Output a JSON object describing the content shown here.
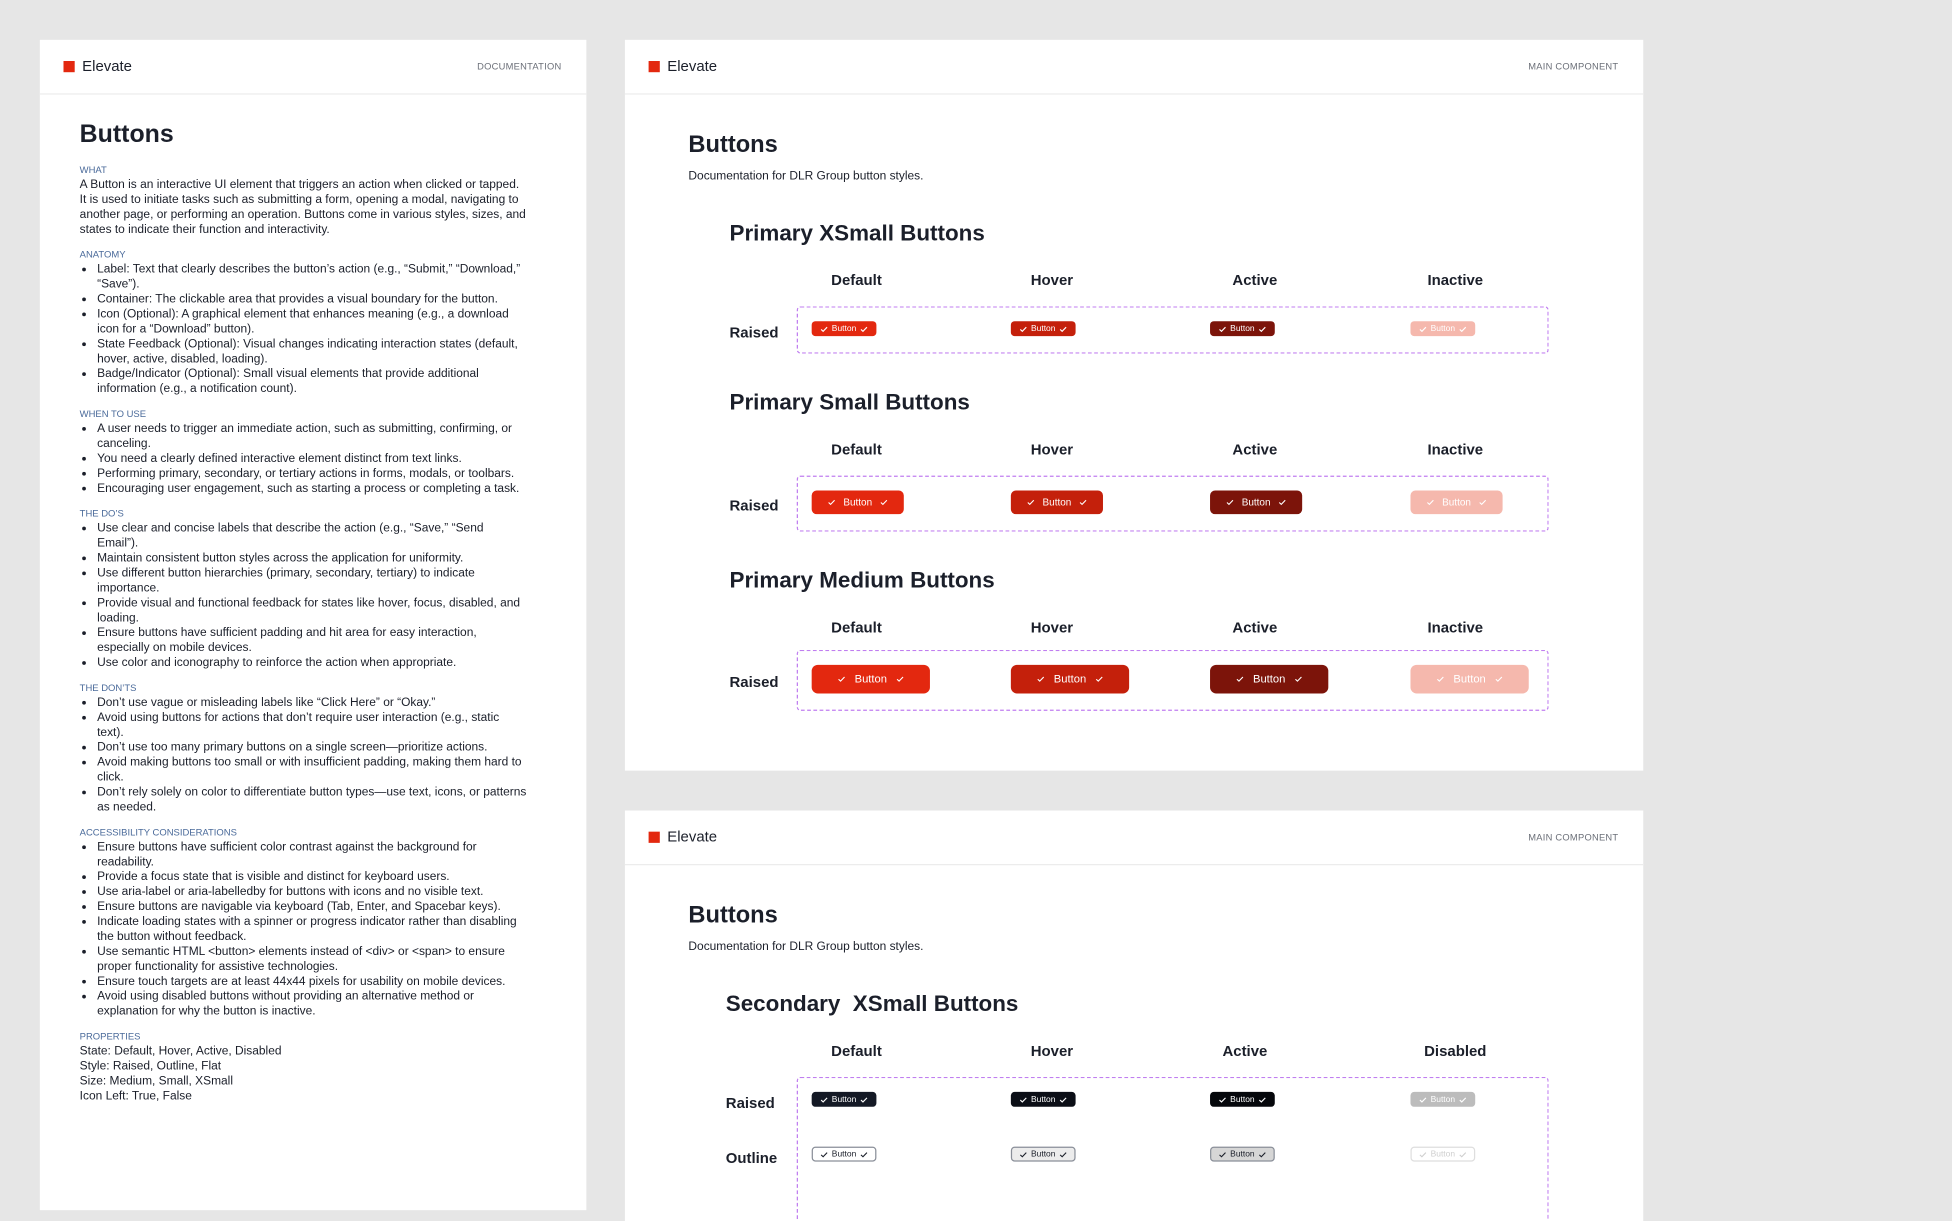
{
  "doc": {
    "brand": "Elevate",
    "tag": "DOCUMENTATION",
    "title": "Buttons",
    "sections": [
      {
        "heading": "WHAT",
        "paragraph": "A Button is an interactive UI element that triggers an action when clicked or tapped. It is used to initiate tasks such as submitting a form, opening a modal, navigating to another page, or performing an operation. Buttons come in various styles, sizes, and states to indicate their function and interactivity."
      },
      {
        "heading": "ANATOMY",
        "items": [
          "Label: Text that clearly describes the button’s action (e.g., “Submit,” “Download,” “Save”).",
          "Container: The clickable area that provides a visual boundary for the button.",
          "Icon (Optional): A graphical element that enhances meaning (e.g., a download icon for a “Download” button).",
          "State Feedback (Optional): Visual changes indicating interaction states (default, hover, active, disabled, loading).",
          "Badge/Indicator (Optional): Small visual elements that provide additional information (e.g., a notification count)."
        ]
      },
      {
        "heading": "WHEN TO USE",
        "items": [
          "A user needs to trigger an immediate action, such as submitting, confirming, or canceling.",
          "You need a clearly defined interactive element distinct from text links.",
          "Performing primary, secondary, or tertiary actions in forms, modals, or toolbars.",
          "Encouraging user engagement, such as starting a process or completing a task."
        ]
      },
      {
        "heading": "THE DO’S",
        "items": [
          "Use clear and concise labels that describe the action (e.g., “Save,” “Send Email”).",
          "Maintain consistent button styles across the application for uniformity.",
          "Use different button hierarchies (primary, secondary, tertiary) to indicate importance.",
          "Provide visual and functional feedback for states like hover, focus, disabled, and loading.",
          "Ensure buttons have sufficient padding and hit area for easy interaction, especially on mobile devices.",
          "Use color and iconography to reinforce the action when appropriate."
        ]
      },
      {
        "heading": "THE DON’TS",
        "items": [
          "Don’t use vague or misleading labels like “Click Here” or “Okay.”",
          "Avoid using buttons for actions that don’t require user interaction (e.g., static text).",
          "Don’t use too many primary buttons on a single screen—prioritize actions.",
          "Avoid making buttons too small or with insufficient padding, making them hard to click.",
          "Don’t rely solely on color to differentiate button types—use text, icons, or patterns as needed."
        ]
      },
      {
        "heading": "ACCESSIBILITY CONSIDERATIONS",
        "items": [
          "Ensure buttons have sufficient color contrast against the background for readability.",
          "Provide a focus state that is visible and distinct for keyboard users.",
          "Use aria-label or aria-labelledby for buttons with icons and no visible text.",
          "Ensure buttons are navigable via keyboard (Tab, Enter, and Spacebar keys).",
          "Indicate loading states with a spinner or progress indicator rather than disabling the button without feedback.",
          "Use semantic HTML <button> elements instead of <div> or <span> to ensure proper functionality for assistive technologies.",
          "Ensure touch targets are at least 44x44 pixels for usability on mobile devices.",
          "Avoid using disabled buttons without providing an alternative method or explanation for why the button is inactive."
        ]
      },
      {
        "heading": "PROPERTIES",
        "lines": [
          "State: Default, Hover, Active, Disabled",
          "Style: Raised, Outline, Flat",
          "Size: Medium, Small, XSmall",
          "Icon Left: True, False"
        ]
      }
    ]
  },
  "panels": [
    {
      "brand": "Elevate",
      "tag": "MAIN COMPONENT",
      "title": "Buttons",
      "subtitle": "Documentation for DLR Group button styles.",
      "groups": [
        {
          "title": "Primary XSmall Buttons",
          "columns": [
            "Default",
            "Hover",
            "Active",
            "Inactive"
          ],
          "rows": [
            {
              "label": "Raised",
              "buttons": [
                "Button",
                "Button",
                "Button",
                "Button"
              ]
            }
          ]
        },
        {
          "title": "Primary Small Buttons",
          "columns": [
            "Default",
            "Hover",
            "Active",
            "Inactive"
          ],
          "rows": [
            {
              "label": "Raised",
              "buttons": [
                "Button",
                "Button",
                "Button",
                "Button"
              ]
            }
          ]
        },
        {
          "title": "Primary Medium Buttons",
          "columns": [
            "Default",
            "Hover",
            "Active",
            "Inactive"
          ],
          "rows": [
            {
              "label": "Raised",
              "buttons": [
                "Button",
                "Button",
                "Button",
                "Button"
              ]
            }
          ]
        }
      ]
    },
    {
      "brand": "Elevate",
      "tag": "MAIN COMPONENT",
      "title": "Buttons",
      "subtitle": "Documentation for DLR Group button styles.",
      "groups": [
        {
          "title": "Secondary  XSmall Buttons",
          "columns": [
            "Default",
            "Hover",
            "Active",
            "Disabled"
          ],
          "rows": [
            {
              "label": "Raised",
              "buttons": [
                "Button",
                "Button",
                "Button",
                "Button"
              ]
            },
            {
              "label": "Outline",
              "buttons": [
                "Button",
                "Button",
                "Button",
                "Button"
              ]
            }
          ]
        }
      ]
    }
  ]
}
